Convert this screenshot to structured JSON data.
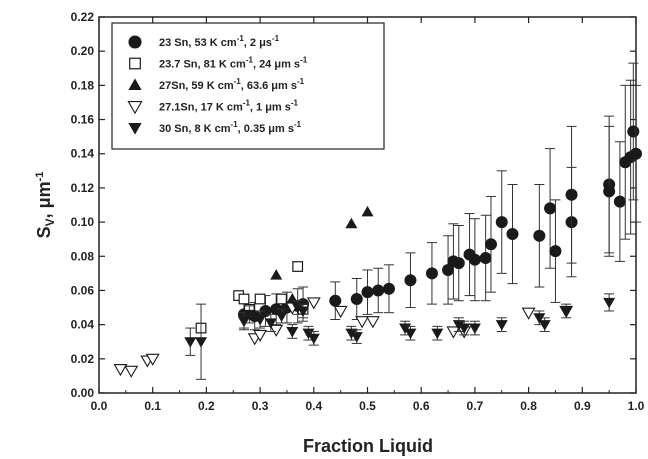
{
  "chart_data": {
    "type": "scatter",
    "title": "",
    "xlabel": "Fraction Liquid",
    "ylabel": "S",
    "ylabel_sub": "V",
    "ylabel_unit": ", μm",
    "ylabel_sup": "-1",
    "xlim": [
      0.0,
      1.0
    ],
    "ylim": [
      0.0,
      0.22
    ],
    "x_ticks": [
      "0.0",
      "0.1",
      "0.2",
      "0.3",
      "0.4",
      "0.5",
      "0.6",
      "0.7",
      "0.8",
      "0.9",
      "1.0"
    ],
    "y_ticks": [
      "0.00",
      "0.02",
      "0.04",
      "0.06",
      "0.08",
      "0.10",
      "0.12",
      "0.14",
      "0.16",
      "0.18",
      "0.20",
      "0.22"
    ],
    "grid": false,
    "legend_position": "top-left",
    "series": [
      {
        "name": "23 Sn, 53 K cm-1, 2 μs-1",
        "legend": {
          "a": "23 Sn, 53 K cm",
          "b": "-1",
          "c": ", 2  μs",
          "d": "-1"
        },
        "marker": "filled-circle",
        "points": [
          [
            0.27,
            0.046,
            0.008
          ],
          [
            0.29,
            0.045,
            0.008
          ],
          [
            0.31,
            0.048,
            0.009
          ],
          [
            0.33,
            0.049,
            0.009
          ],
          [
            0.35,
            0.05,
            0.009
          ],
          [
            0.37,
            0.051,
            0.01
          ],
          [
            0.38,
            0.052,
            0.01
          ],
          [
            0.44,
            0.054,
            0.011
          ],
          [
            0.48,
            0.055,
            0.012
          ],
          [
            0.5,
            0.059,
            0.013
          ],
          [
            0.52,
            0.06,
            0.013
          ],
          [
            0.54,
            0.061,
            0.014
          ],
          [
            0.58,
            0.066,
            0.016
          ],
          [
            0.62,
            0.07,
            0.018
          ],
          [
            0.65,
            0.072,
            0.02
          ],
          [
            0.66,
            0.077,
            0.022
          ],
          [
            0.67,
            0.076,
            0.022
          ],
          [
            0.69,
            0.081,
            0.024
          ],
          [
            0.7,
            0.078,
            0.024
          ],
          [
            0.72,
            0.079,
            0.025
          ],
          [
            0.73,
            0.087,
            0.028
          ],
          [
            0.75,
            0.1,
            0.03
          ],
          [
            0.77,
            0.093,
            0.029
          ],
          [
            0.82,
            0.092,
            0.03
          ],
          [
            0.84,
            0.108,
            0.035
          ],
          [
            0.85,
            0.083,
            0.03
          ],
          [
            0.88,
            0.1,
            0.032
          ],
          [
            0.88,
            0.116,
            0.04
          ],
          [
            0.95,
            0.122,
            0.04
          ],
          [
            0.95,
            0.118,
            0.038
          ],
          [
            0.97,
            0.112,
            0.035
          ],
          [
            0.98,
            0.135,
            0.045
          ],
          [
            0.99,
            0.138,
            0.045
          ],
          [
            0.995,
            0.153,
            0.04
          ],
          [
            1.0,
            0.14,
            0.04
          ]
        ]
      },
      {
        "name": "23.7 Sn, 81 K cm-1, 24 μm s-1",
        "legend": {
          "a": "23.7 Sn, 81 K cm",
          "b": "-1",
          "c": ", 24 μm s",
          "d": "-1"
        },
        "marker": "open-square",
        "points": [
          [
            0.19,
            0.038,
            0
          ],
          [
            0.26,
            0.057,
            0
          ],
          [
            0.27,
            0.055,
            0
          ],
          [
            0.28,
            0.049,
            0
          ],
          [
            0.3,
            0.055,
            0
          ],
          [
            0.34,
            0.055,
            0
          ],
          [
            0.37,
            0.074,
            0
          ],
          [
            0.38,
            0.049,
            0
          ]
        ]
      },
      {
        "name": "27Sn, 59 K cm-1, 63.6 μm s-1",
        "legend": {
          "a": "27Sn, 59 K cm",
          "b": "-1",
          "c": ", 63.6 μm s",
          "d": "-1"
        },
        "marker": "filled-triangle-up",
        "points": [
          [
            0.33,
            0.069,
            0
          ],
          [
            0.36,
            0.055,
            0
          ],
          [
            0.47,
            0.099,
            0
          ],
          [
            0.5,
            0.106,
            0
          ]
        ]
      },
      {
        "name": "27.1Sn, 17 K cm-1, 1 μm s-1",
        "legend": {
          "a": "27.1Sn, 17 K cm",
          "b": "-1",
          "c": ", 1 μm s",
          "d": "-1"
        },
        "marker": "open-triangle-down",
        "points": [
          [
            0.04,
            0.014,
            0
          ],
          [
            0.06,
            0.013,
            0
          ],
          [
            0.09,
            0.019,
            0
          ],
          [
            0.1,
            0.02,
            0
          ],
          [
            0.29,
            0.032,
            0
          ],
          [
            0.3,
            0.034,
            0
          ],
          [
            0.33,
            0.037,
            0
          ],
          [
            0.36,
            0.05,
            0
          ],
          [
            0.4,
            0.053,
            0
          ],
          [
            0.45,
            0.048,
            0
          ],
          [
            0.49,
            0.042,
            0
          ],
          [
            0.51,
            0.042,
            0
          ],
          [
            0.66,
            0.036,
            0
          ],
          [
            0.68,
            0.036,
            0
          ],
          [
            0.8,
            0.047,
            0
          ],
          [
            0.87,
            0.048,
            0
          ]
        ]
      },
      {
        "name": "30 Sn, 8 K cm-1, 0.35 μm s-1",
        "legend": {
          "a": "30 Sn, 8 K cm",
          "b": "-1",
          "c": ", 0.35 μm s",
          "d": "-1"
        },
        "marker": "filled-triangle-down",
        "points": [
          [
            0.17,
            0.03,
            0.008
          ],
          [
            0.19,
            0.03,
            0.022
          ],
          [
            0.27,
            0.042,
            0.005
          ],
          [
            0.28,
            0.046,
            0.005
          ],
          [
            0.3,
            0.043,
            0.005
          ],
          [
            0.32,
            0.041,
            0.005
          ],
          [
            0.34,
            0.045,
            0.004
          ],
          [
            0.36,
            0.036,
            0.004
          ],
          [
            0.37,
            0.05,
            0.004
          ],
          [
            0.38,
            0.048,
            0.004
          ],
          [
            0.39,
            0.035,
            0.004
          ],
          [
            0.4,
            0.032,
            0.004
          ],
          [
            0.47,
            0.035,
            0.004
          ],
          [
            0.48,
            0.033,
            0.004
          ],
          [
            0.57,
            0.038,
            0.004
          ],
          [
            0.58,
            0.035,
            0.004
          ],
          [
            0.63,
            0.035,
            0.004
          ],
          [
            0.67,
            0.04,
            0.004
          ],
          [
            0.68,
            0.038,
            0.004
          ],
          [
            0.7,
            0.038,
            0.004
          ],
          [
            0.75,
            0.04,
            0.004
          ],
          [
            0.82,
            0.044,
            0.004
          ],
          [
            0.83,
            0.04,
            0.004
          ],
          [
            0.87,
            0.048,
            0.004
          ],
          [
            0.95,
            0.053,
            0.005
          ]
        ]
      }
    ]
  }
}
